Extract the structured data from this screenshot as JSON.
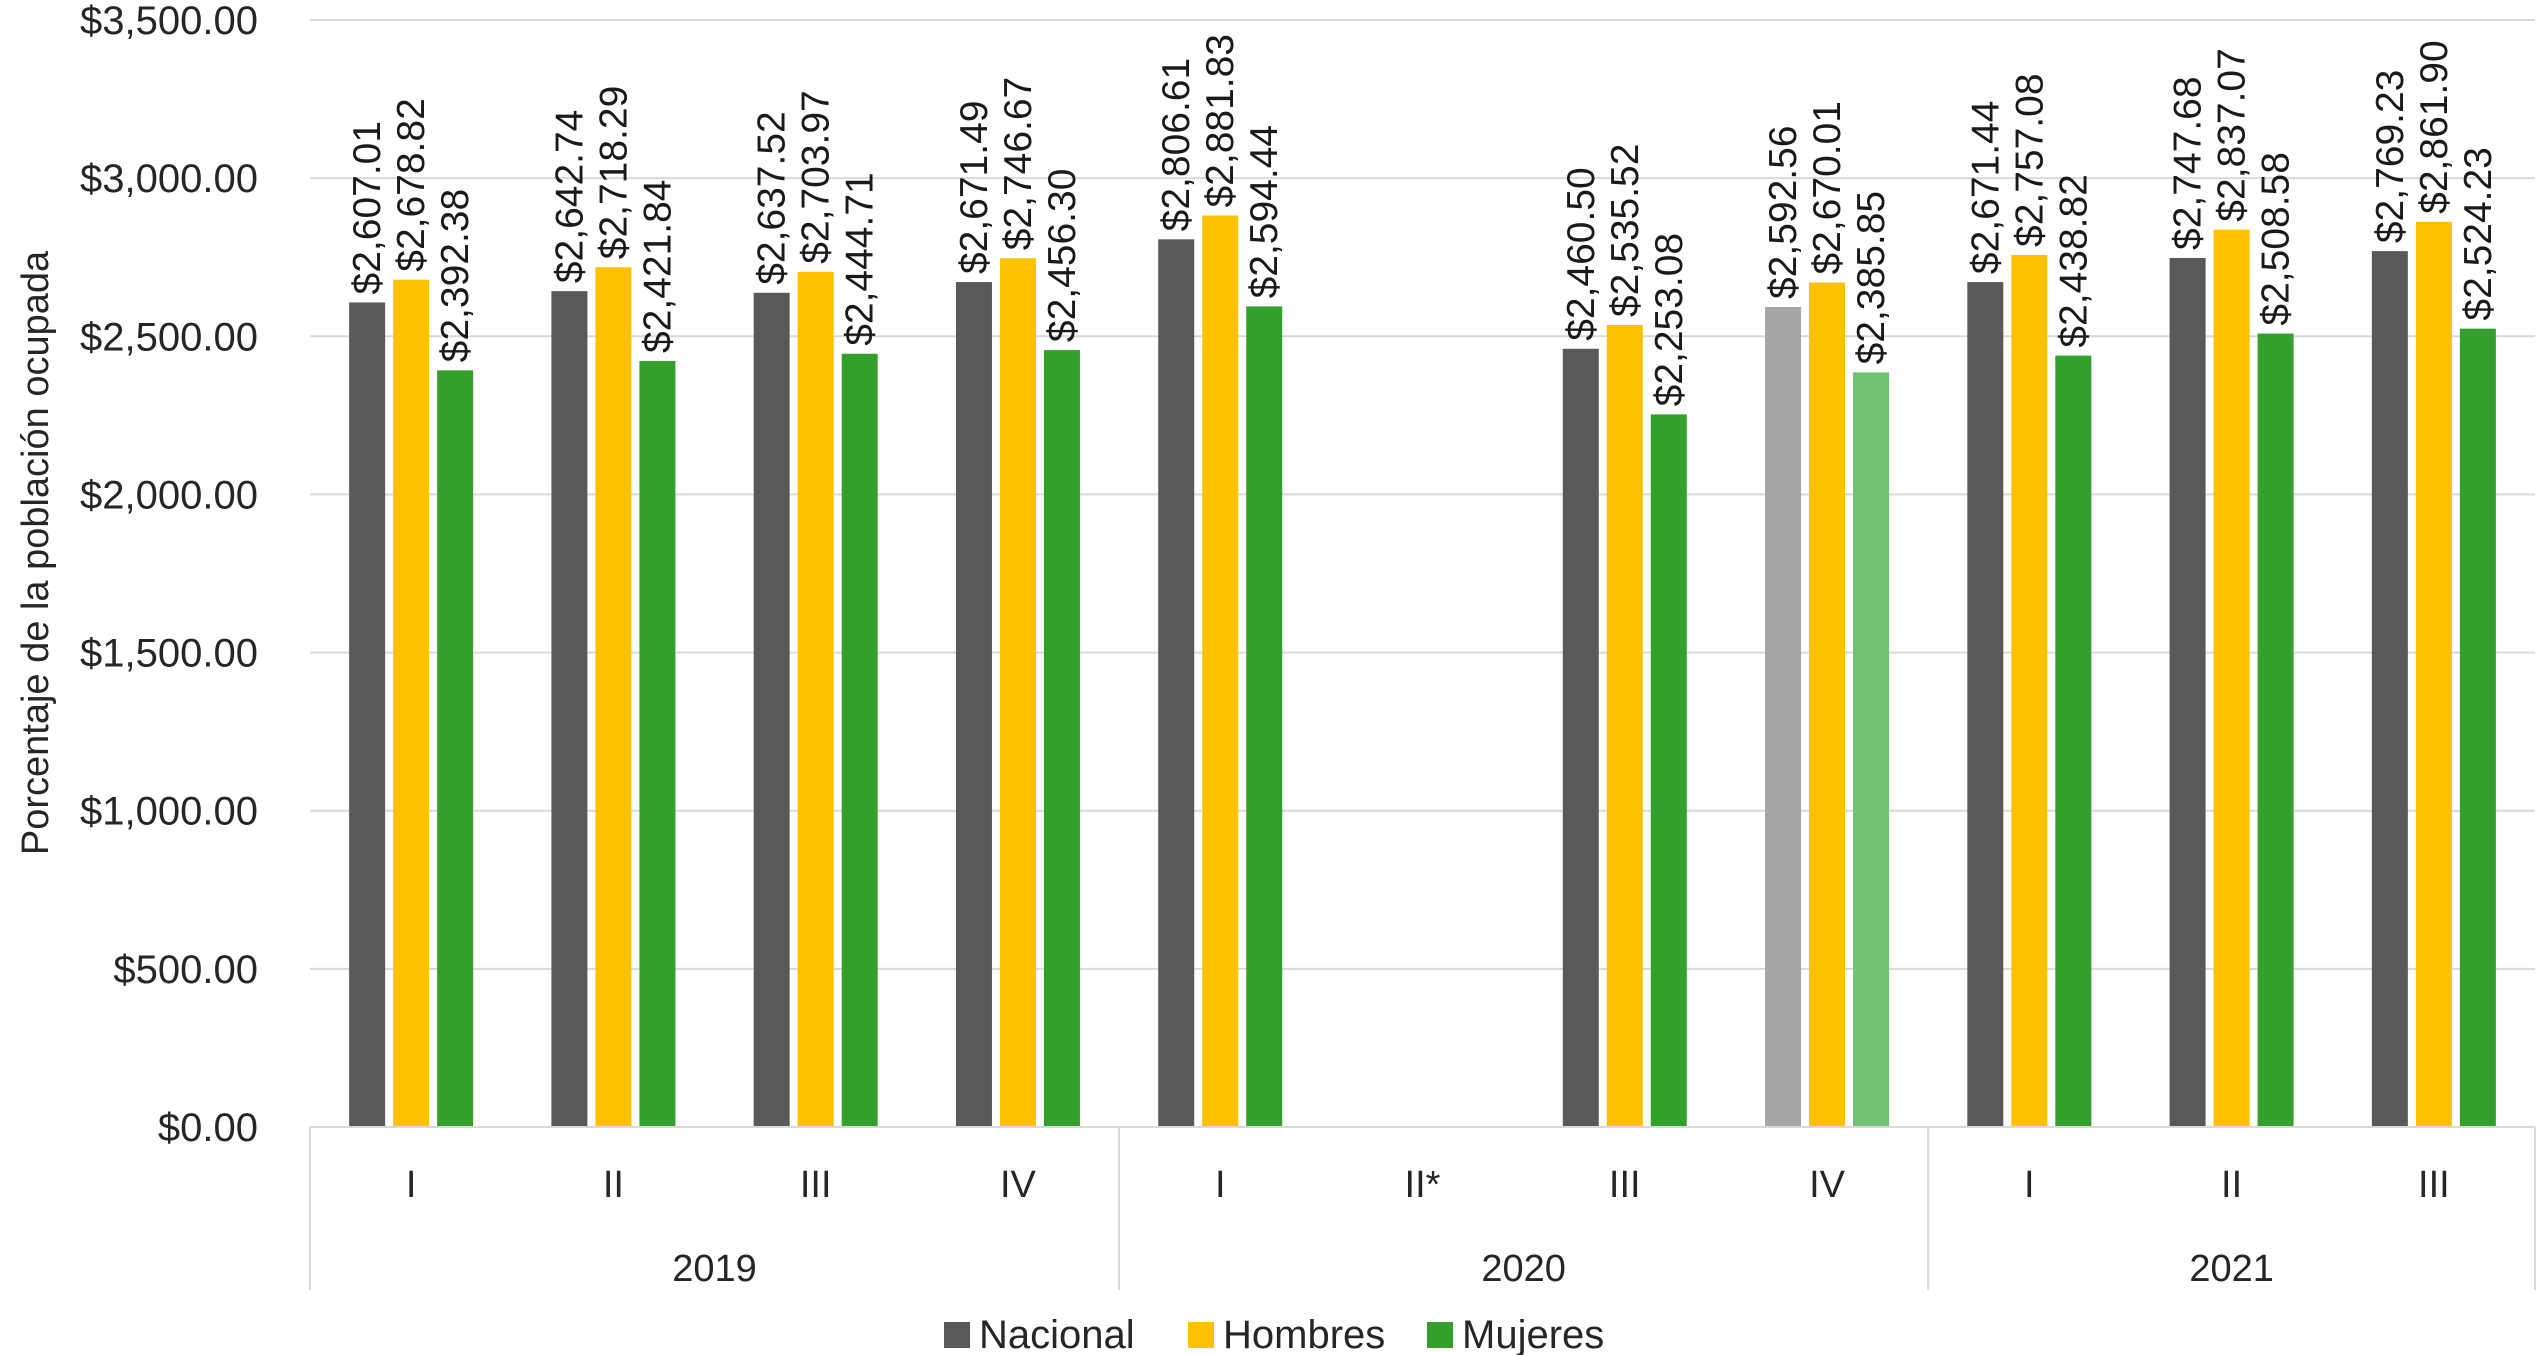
{
  "chart_data": {
    "type": "bar",
    "title": "",
    "ylabel": "Porcentaje de la población ocupada",
    "xlabel": "",
    "ylim": [
      0,
      3500
    ],
    "yticks": [
      0,
      500,
      1000,
      1500,
      2000,
      2500,
      3000,
      3500
    ],
    "ytick_labels": [
      "$0.00",
      "$500.00",
      "$1,000.00",
      "$1,500.00",
      "$2,000.00",
      "$2,500.00",
      "$3,000.00",
      "$3,500.00"
    ],
    "grid": true,
    "legend_position": "bottom",
    "categories": [
      "I",
      "II",
      "III",
      "IV",
      "I",
      "II*",
      "III",
      "IV",
      "I",
      "II",
      "III"
    ],
    "groups": [
      {
        "label": "2019",
        "count": 4
      },
      {
        "label": "2020",
        "count": 4
      },
      {
        "label": "2021",
        "count": 3
      }
    ],
    "series": [
      {
        "name": "Nacional",
        "color": "#595959",
        "light_color": "#a6a6a6",
        "values": [
          2607.01,
          2642.74,
          2637.52,
          2671.49,
          2806.61,
          null,
          2460.5,
          2592.56,
          2671.44,
          2747.68,
          2769.23
        ],
        "labels": [
          "$2,607.01",
          "$2,642.74",
          "$2,637.52",
          "$2,671.49",
          "$2,806.61",
          "",
          "$2,460.50",
          "$2,592.56",
          "$2,671.44",
          "$2,747.68",
          "$2,769.23"
        ]
      },
      {
        "name": "Hombres",
        "color": "#ffc000",
        "light_color": "#ffc000",
        "values": [
          2678.82,
          2718.29,
          2703.97,
          2746.67,
          2881.83,
          null,
          2535.52,
          2670.01,
          2757.08,
          2837.07,
          2861.9
        ],
        "labels": [
          "$2,678.82",
          "$2,718.29",
          "$2,703.97",
          "$2,746.67",
          "$2,881.83",
          "",
          "$2,535.52",
          "$2,670.01",
          "$2,757.08",
          "$2,837.07",
          "$2,861.90"
        ]
      },
      {
        "name": "Mujeres",
        "color": "#33a02c",
        "light_color": "#70c170",
        "values": [
          2392.38,
          2421.84,
          2444.71,
          2456.3,
          2594.44,
          null,
          2253.08,
          2385.85,
          2438.82,
          2508.58,
          2524.23
        ],
        "labels": [
          "$2,392.38",
          "$2,421.84",
          "$2,444.71",
          "$2,456.30",
          "$2,594.44",
          "",
          "$2,253.08",
          "$2,385.85",
          "$2,438.82",
          "$2,508.58",
          "$2,524.23"
        ]
      }
    ],
    "highlight_light_category_index": 7
  }
}
